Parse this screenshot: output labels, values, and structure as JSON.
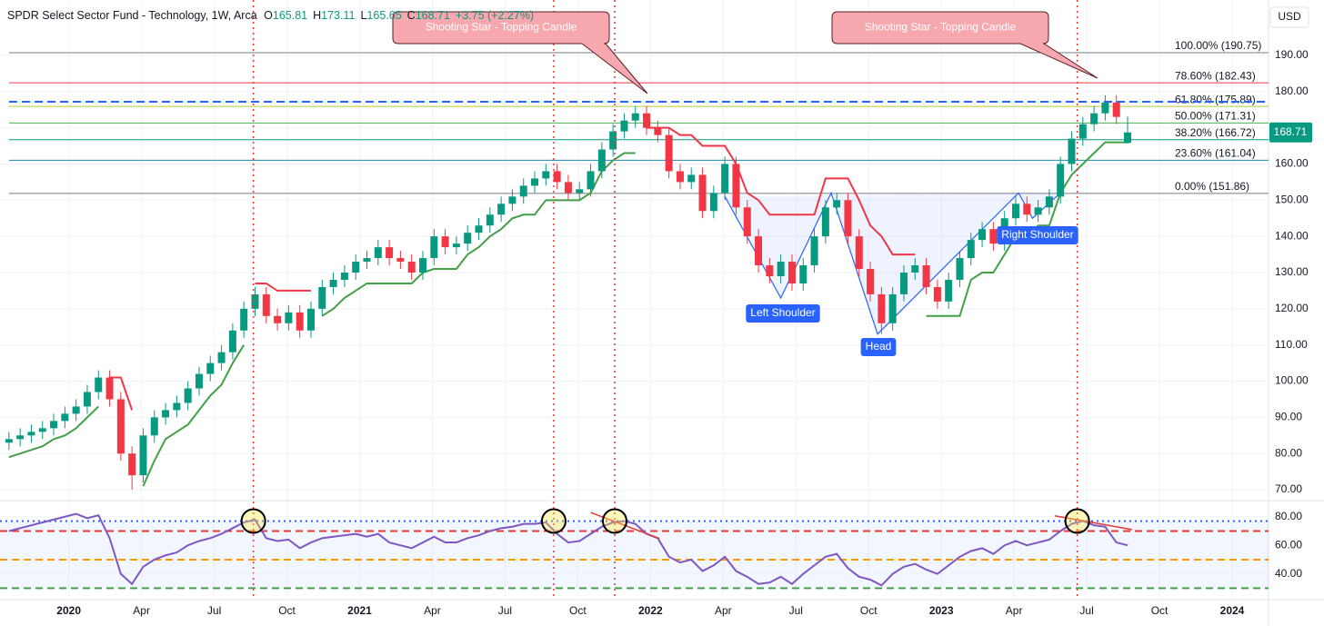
{
  "chart_data": [
    {
      "type": "candlestick",
      "title": "SPDR Select Sector Fund - Technology, 1W, Arca",
      "header_keys": [
        "O",
        "H",
        "L",
        "C"
      ],
      "change": "+3.75 (+2.27%)",
      "currency": "USD",
      "up_color": "#089981",
      "down_color": "#f23645",
      "x": [
        0,
        2,
        4,
        6,
        8,
        10,
        12,
        14,
        16,
        18,
        20,
        22,
        24,
        26,
        28,
        30,
        32,
        34,
        36,
        38,
        40,
        42,
        44,
        46,
        48,
        50,
        52,
        54,
        56,
        58,
        60,
        62,
        64,
        66,
        68,
        70,
        72,
        74,
        76,
        78,
        80,
        82,
        84,
        86,
        88,
        90,
        92,
        94,
        96,
        98,
        100,
        102,
        104,
        106,
        108,
        110,
        112,
        114,
        116,
        118,
        120,
        122,
        124,
        126,
        128,
        130,
        132,
        134,
        136,
        138,
        140,
        142,
        144,
        146,
        148,
        150,
        152,
        154,
        156,
        158,
        160,
        162,
        164,
        166,
        168,
        170,
        172,
        174,
        176,
        178,
        180,
        182,
        184,
        186,
        188,
        190,
        192,
        194,
        196,
        198,
        200
      ],
      "open": [
        83,
        84,
        85,
        86,
        87,
        89,
        91,
        93,
        97,
        101,
        95,
        80,
        74,
        85,
        90,
        92,
        94,
        98,
        102,
        105,
        108,
        114,
        120,
        124,
        118,
        116,
        119,
        114,
        120,
        126,
        128,
        130,
        133,
        134,
        137,
        134,
        133,
        130,
        134,
        140,
        137,
        138,
        141,
        143,
        146,
        149,
        151,
        154,
        156,
        158,
        155,
        152,
        153,
        158,
        164,
        169,
        172,
        174,
        170,
        168,
        158,
        155,
        157,
        147,
        152,
        160,
        148,
        140,
        132,
        129,
        133,
        127,
        132,
        140,
        148,
        150,
        140,
        131,
        124,
        116,
        124,
        130,
        132,
        126,
        122,
        128,
        134,
        139,
        142,
        138,
        145,
        149,
        146,
        148,
        151,
        160,
        167,
        171,
        174,
        177,
        165.81
      ],
      "high": [
        86,
        87,
        88,
        89,
        91,
        93,
        95,
        99,
        103,
        103,
        97,
        82,
        87,
        92,
        94,
        96,
        100,
        104,
        107,
        110,
        116,
        122,
        126,
        126,
        120,
        121,
        121,
        122,
        128,
        130,
        132,
        135,
        136,
        139,
        139,
        136,
        135,
        136,
        142,
        142,
        140,
        143,
        145,
        148,
        151,
        153,
        156,
        158,
        160,
        160,
        157,
        155,
        160,
        166,
        171,
        174,
        176,
        176,
        172,
        170,
        160,
        159,
        159,
        154,
        162,
        162,
        150,
        142,
        134,
        135,
        135,
        134,
        142,
        150,
        152,
        152,
        142,
        133,
        126,
        126,
        132,
        134,
        134,
        128,
        130,
        136,
        141,
        144,
        144,
        147,
        151,
        151,
        150,
        153,
        162,
        169,
        173,
        176,
        179,
        179,
        173.11
      ],
      "low": [
        81,
        82,
        83,
        84,
        85,
        87,
        89,
        91,
        95,
        93,
        78,
        70,
        72,
        83,
        88,
        90,
        92,
        96,
        100,
        103,
        106,
        112,
        118,
        116,
        114,
        114,
        112,
        112,
        118,
        124,
        126,
        128,
        131,
        132,
        132,
        131,
        128,
        128,
        132,
        135,
        135,
        136,
        139,
        141,
        144,
        147,
        149,
        152,
        154,
        153,
        150,
        150,
        151,
        156,
        162,
        167,
        170,
        168,
        166,
        156,
        153,
        153,
        145,
        145,
        150,
        146,
        138,
        130,
        127,
        127,
        125,
        125,
        130,
        138,
        146,
        138,
        129,
        122,
        113,
        114,
        122,
        128,
        124,
        120,
        120,
        126,
        132,
        137,
        136,
        136,
        143,
        144,
        144,
        146,
        149,
        158,
        165,
        169,
        172,
        171,
        165.65
      ],
      "close": [
        84,
        85,
        86,
        87,
        89,
        91,
        93,
        97,
        101,
        95,
        80,
        74,
        85,
        90,
        92,
        94,
        98,
        102,
        105,
        108,
        114,
        120,
        124,
        118,
        116,
        119,
        114,
        120,
        126,
        128,
        130,
        133,
        134,
        137,
        134,
        133,
        130,
        134,
        140,
        137,
        138,
        141,
        143,
        146,
        149,
        151,
        154,
        156,
        158,
        155,
        152,
        153,
        158,
        164,
        169,
        172,
        174,
        170,
        168,
        158,
        155,
        157,
        147,
        152,
        160,
        148,
        140,
        132,
        129,
        133,
        127,
        132,
        140,
        148,
        150,
        140,
        131,
        124,
        116,
        124,
        130,
        132,
        126,
        122,
        128,
        134,
        139,
        142,
        138,
        145,
        149,
        146,
        148,
        151,
        160,
        167,
        171,
        174,
        177,
        173,
        168.71
      ],
      "supertrend_up": {
        "color": "#43a047",
        "values": [
          79,
          80,
          81,
          82,
          84,
          85,
          87,
          90,
          93,
          null,
          null,
          null,
          71,
          78,
          84,
          86,
          88,
          92,
          96,
          99,
          105,
          110,
          null,
          null,
          null,
          null,
          null,
          null,
          118,
          120,
          123,
          125,
          127,
          127,
          127,
          127,
          127,
          130,
          131,
          131,
          131,
          135,
          137,
          140,
          142,
          145,
          146,
          146,
          150,
          150,
          150,
          150,
          152,
          158,
          161,
          163,
          163,
          null,
          null,
          null,
          null,
          null,
          null,
          null,
          null,
          null,
          null,
          null,
          null,
          null,
          null,
          null,
          null,
          null,
          null,
          null,
          null,
          null,
          null,
          null,
          null,
          null,
          118,
          118,
          118,
          118,
          128,
          130,
          130,
          135,
          140,
          140,
          143,
          143,
          152,
          157,
          160,
          163,
          166,
          166,
          166
        ]
      },
      "supertrend_down": {
        "color": "#f23645",
        "values": [
          null,
          null,
          null,
          null,
          null,
          null,
          null,
          null,
          null,
          101,
          101,
          92,
          null,
          null,
          null,
          null,
          null,
          null,
          null,
          null,
          null,
          null,
          127,
          127,
          125,
          125,
          125,
          125,
          null,
          null,
          null,
          null,
          null,
          null,
          null,
          null,
          null,
          null,
          null,
          null,
          null,
          null,
          null,
          null,
          null,
          null,
          null,
          null,
          null,
          null,
          null,
          null,
          null,
          null,
          null,
          null,
          null,
          170,
          170,
          170,
          168,
          168,
          165,
          165,
          165,
          160,
          152,
          150,
          146,
          146,
          146,
          146,
          146,
          156,
          156,
          156,
          150,
          143,
          140,
          135,
          135,
          135,
          null,
          null,
          null,
          null,
          null,
          null,
          null,
          null,
          null,
          null,
          null,
          null,
          null,
          null,
          null,
          null,
          null,
          null,
          null
        ]
      },
      "fib_levels": [
        {
          "value": 190.75,
          "label": "100.00% (190.75)",
          "color": "#787b86"
        },
        {
          "value": 182.43,
          "label": "78.60% (182.43)",
          "color": "#f23645"
        },
        {
          "value": 175.89,
          "label": "61.80% (175.89)",
          "color": "#b5c934"
        },
        {
          "value": 171.31,
          "label": "50.00% (171.31)",
          "color": "#4caf50"
        },
        {
          "value": 166.72,
          "label": "38.20% (166.72)",
          "color": "#089981"
        },
        {
          "value": 161.04,
          "label": "23.60% (161.04)",
          "color": "#1e88a8"
        },
        {
          "value": 151.86,
          "label": "0.00% (151.86)",
          "color": "#787b86"
        }
      ],
      "resistance": {
        "value": 177.2,
        "color": "#2962ff"
      },
      "vlines": {
        "x": [
          43.7,
          97.4,
          108.3,
          191
        ],
        "color": "#e53935"
      },
      "pattern": {
        "x": [
          128,
          138,
          147,
          155.3,
          180.5,
          183,
          188
        ],
        "y": [
          151,
          123,
          152,
          113,
          152,
          145,
          152
        ],
        "color": "#2962ff"
      },
      "pattern_labels": [
        "Left Shoulder",
        "Head",
        "Right Shoulder"
      ],
      "callouts": [
        "Shooting Star - Topping Candle",
        "Shooting Star - Topping Candle"
      ],
      "xlim": [
        -1.6,
        225.2
      ],
      "xticks": [
        {
          "value": 10.7,
          "label": "2020"
        },
        {
          "value": 23.7,
          "label": "Apr"
        },
        {
          "value": 36.7,
          "label": "Jul"
        },
        {
          "value": 49.7,
          "label": "Oct"
        },
        {
          "value": 62.7,
          "label": "2021"
        },
        {
          "value": 75.7,
          "label": "Apr"
        },
        {
          "value": 88.7,
          "label": "Jul"
        },
        {
          "value": 101.7,
          "label": "Oct"
        },
        {
          "value": 114.7,
          "label": "2022"
        },
        {
          "value": 127.7,
          "label": "Apr"
        },
        {
          "value": 140.7,
          "label": "Jul"
        },
        {
          "value": 153.7,
          "label": "Oct"
        },
        {
          "value": 166.7,
          "label": "2023"
        },
        {
          "value": 179.7,
          "label": "Apr"
        },
        {
          "value": 192.7,
          "label": "Jul"
        },
        {
          "value": 205.7,
          "label": "Oct"
        },
        {
          "value": 218.7,
          "label": "2024"
        }
      ],
      "ylim": [
        67.5,
        205.3
      ],
      "yticks": [
        {
          "value": 70,
          "label": "70.00"
        },
        {
          "value": 80,
          "label": "80.00"
        },
        {
          "value": 90,
          "label": "90.00"
        },
        {
          "value": 100,
          "label": "100.00"
        },
        {
          "value": 110,
          "label": "110.00"
        },
        {
          "value": 120,
          "label": "120.00"
        },
        {
          "value": 130,
          "label": "130.00"
        },
        {
          "value": 140,
          "label": "140.00"
        },
        {
          "value": 150,
          "label": "150.00"
        },
        {
          "value": 160,
          "label": "160.00"
        },
        {
          "value": 170,
          "label": "170.00"
        },
        {
          "value": 180,
          "label": "180.00"
        },
        {
          "value": 190,
          "label": "190.00"
        }
      ],
      "grid": true
    },
    {
      "type": "line",
      "series": [
        {
          "color": "#7e57c2",
          "values": [
            70,
            72,
            74,
            76,
            78,
            80,
            82,
            79,
            81,
            65,
            40,
            33,
            45,
            50,
            53,
            55,
            60,
            63,
            65,
            68,
            72,
            76,
            78,
            65,
            63,
            64,
            58,
            62,
            65,
            66,
            67,
            68,
            66,
            68,
            62,
            60,
            58,
            62,
            66,
            62,
            62,
            65,
            67,
            70,
            72,
            73,
            75,
            75,
            76,
            68,
            62,
            63,
            68,
            73,
            76,
            77,
            75,
            68,
            65,
            52,
            48,
            50,
            42,
            46,
            52,
            42,
            38,
            33,
            34,
            38,
            33,
            40,
            46,
            52,
            54,
            44,
            38,
            36,
            32,
            40,
            45,
            47,
            43,
            40,
            46,
            52,
            56,
            58,
            54,
            60,
            63,
            60,
            62,
            64,
            70,
            75,
            77,
            74,
            73,
            62,
            60
          ]
        }
      ],
      "levels": [
        {
          "value": 77,
          "color": "#2962ff",
          "dash": "2 4"
        },
        {
          "value": 70,
          "color": "#e53935",
          "dash": "8 5"
        },
        {
          "value": 50,
          "color": "#ff9800",
          "dash": "8 5"
        },
        {
          "value": 30,
          "color": "#43a047",
          "dash": "8 5"
        }
      ],
      "trendlines": [
        {
          "x": [
            104,
            116.3
          ],
          "y": [
            83,
            64.8
          ]
        },
        {
          "x": [
            187,
            200.8
          ],
          "y": [
            80.6,
            71
          ]
        }
      ],
      "trend_color": "#e53935",
      "ylim": [
        22,
        90
      ],
      "yticks": [
        {
          "value": 40,
          "label": "40.00"
        },
        {
          "value": 60,
          "label": "60.00"
        },
        {
          "value": 80,
          "label": "80.00"
        }
      ]
    }
  ]
}
